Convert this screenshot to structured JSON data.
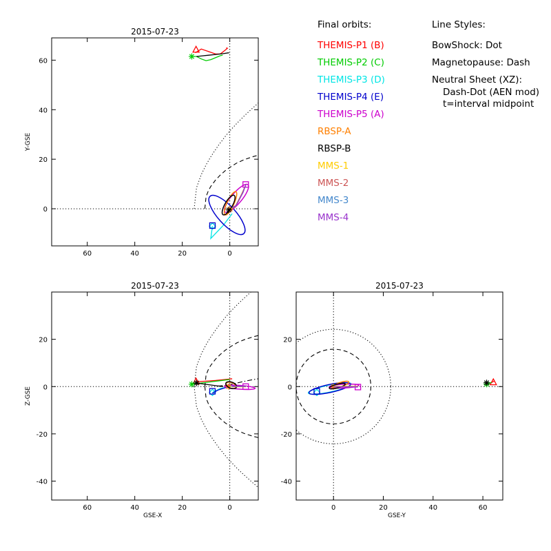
{
  "chart_data": [
    {
      "type": "line",
      "panel": "top-left",
      "title": "2015-07-23",
      "xlabel": "",
      "ylabel": "Y-GSE",
      "xlim": [
        75,
        -12
      ],
      "ylim": [
        -15,
        69
      ],
      "x_ticks": [
        60,
        40,
        20,
        0
      ],
      "y_ticks": [
        0,
        20,
        40,
        60
      ],
      "ref_lines": [
        {
          "axis": "x",
          "value": 0,
          "style": "dotted"
        },
        {
          "axis": "y",
          "value": 0,
          "style": "dotted"
        }
      ],
      "boundaries": [
        {
          "name": "BowShock",
          "style": "dotted",
          "color": "#000000",
          "x": [
            15,
            14,
            12,
            10,
            8,
            5,
            2,
            0,
            -3,
            -6,
            -9,
            -12
          ],
          "y": [
            0,
            8.5,
            13.8,
            17.7,
            21,
            25.3,
            29.1,
            31.4,
            34.5,
            37.4,
            40.1,
            42.7
          ]
        },
        {
          "name": "Magnetopause",
          "style": "dashed",
          "color": "#000000",
          "x": [
            10.5,
            10,
            9,
            8,
            6,
            4,
            2,
            0,
            -3,
            -6,
            -10,
            -12
          ],
          "y": [
            0,
            4.8,
            7.3,
            9,
            11.6,
            13.6,
            15.3,
            16.7,
            18.5,
            19.8,
            21.1,
            21.6
          ]
        }
      ],
      "series": [
        {
          "name": "THEMIS-P1 (B)",
          "color": "#ff0000",
          "x": [
            14.5,
            12,
            9,
            6,
            4,
            2,
            1,
            1.5
          ],
          "y": [
            63,
            64.5,
            63.5,
            62.5,
            62.5,
            64,
            64.8,
            65
          ],
          "marker": "triangle",
          "marker_at": [
            14.2,
            64.2
          ]
        },
        {
          "name": "THEMIS-P2 (C)",
          "color": "#00cc00",
          "x": [
            16,
            14,
            12,
            10,
            8,
            6,
            4,
            3
          ],
          "y": [
            61.5,
            61.5,
            60.5,
            59.8,
            60.2,
            61,
            61.8,
            62
          ],
          "marker": "asterisk",
          "marker_at": [
            16,
            61.5
          ]
        },
        {
          "name": "THEMIS-P3 (D)",
          "color": "#00e5e5",
          "x": [
            7.3,
            8,
            3,
            -1
          ],
          "y": [
            -7,
            -12,
            -7,
            -2
          ],
          "marker": "diamond",
          "marker_at": [
            7.3,
            -7
          ]
        },
        {
          "name": "THEMIS-P4 (E)",
          "color": "#0000cc",
          "ellipse": {
            "cx": 1.2,
            "cy": -2.5,
            "a": 10.6,
            "b": 3.6,
            "angle": 48
          },
          "marker": "square",
          "marker_at": [
            7.3,
            -6.8
          ]
        },
        {
          "name": "THEMIS-P5 (A)",
          "color": "#cc00cc",
          "ellipse": {
            "cx": -2.8,
            "cy": 4.2,
            "a": 7.5,
            "b": 2.1,
            "angle": -50
          },
          "marker": "square",
          "marker_at": [
            -6.7,
            9.8
          ]
        },
        {
          "name": "RBSP-A",
          "color": "#ff7f00",
          "ellipse": {
            "cx": -0.3,
            "cy": 2.2,
            "a": 5.4,
            "b": 1.4,
            "angle": -65
          },
          "marker": "asterisk",
          "marker_at": [
            -0.1,
            -0.2
          ]
        },
        {
          "name": "RBSP-B",
          "color": "#000000",
          "ellipse": {
            "cx": 0.5,
            "cy": 1.5,
            "a": 4.7,
            "b": 1.5,
            "angle": -60
          },
          "marker": "asterisk",
          "marker_at": [
            0.4,
            -0.5
          ],
          "extra_x": [
            14,
            12,
            9,
            6,
            3,
            0.3
          ],
          "extra_y": [
            61.5,
            61.7,
            62,
            62.3,
            62.6,
            63
          ]
        },
        {
          "name": "MMS-1",
          "color": "#ffcc00",
          "x": [
            -0.6,
            -2.2,
            -5,
            -6.8
          ],
          "y": [
            0,
            0.8,
            6,
            9.8
          ]
        },
        {
          "name": "MMS-2",
          "color": "#cc5555",
          "x": [
            -0.8,
            -2.4,
            -5.2,
            -6.8
          ],
          "y": [
            0.2,
            1,
            6.2,
            9.8
          ]
        },
        {
          "name": "MMS-3",
          "color": "#4488cc",
          "x": [
            -1,
            -2.6,
            -5.4,
            -6.8
          ],
          "y": [
            0.4,
            1.2,
            6.4,
            9.8
          ]
        },
        {
          "name": "MMS-4",
          "color": "#9933cc",
          "x": [
            -1.2,
            -2.8,
            -5.6,
            -6.8
          ],
          "y": [
            0.6,
            1.4,
            6.6,
            9.8
          ]
        }
      ]
    },
    {
      "type": "line",
      "panel": "bottom-left",
      "title": "2015-07-23",
      "xlabel": "GSE-X",
      "ylabel": "Z-GSE",
      "xlim": [
        75,
        -12
      ],
      "ylim": [
        -48,
        40
      ],
      "x_ticks": [
        60,
        40,
        20,
        0
      ],
      "y_ticks": [
        20,
        0,
        -20,
        -40
      ],
      "ref_lines": [
        {
          "axis": "x",
          "value": 0,
          "style": "dotted"
        },
        {
          "axis": "y",
          "value": 0,
          "style": "dotted"
        }
      ],
      "boundaries": [
        {
          "name": "BowShock",
          "style": "dotted",
          "color": "#000000",
          "x": [
            15,
            14,
            12,
            10,
            8,
            5,
            2,
            0,
            -3,
            -6,
            -9,
            -12
          ],
          "y": [
            0,
            8.5,
            13.8,
            17.7,
            21,
            25.3,
            29.1,
            31.4,
            34.5,
            37.4,
            40.1,
            42.7
          ]
        },
        {
          "name": "BowShock",
          "style": "dotted",
          "color": "#000000",
          "x": [
            15,
            14,
            12,
            10,
            8,
            5,
            2,
            0,
            -3,
            -6,
            -9,
            -12
          ],
          "y": [
            0,
            -8.5,
            -13.8,
            -17.7,
            -21,
            -25.3,
            -29.1,
            -31.4,
            -34.5,
            -37.4,
            -40.1,
            -42.7
          ]
        },
        {
          "name": "Magnetopause",
          "style": "dashed",
          "color": "#000000",
          "x": [
            10.5,
            10,
            9,
            8,
            6,
            4,
            2,
            0,
            -3,
            -6,
            -10,
            -12
          ],
          "y": [
            0,
            4.8,
            7.3,
            9,
            11.6,
            13.6,
            15.3,
            16.7,
            18.5,
            19.8,
            21.1,
            21.6
          ]
        },
        {
          "name": "Magnetopause",
          "style": "dashed",
          "color": "#000000",
          "x": [
            10.5,
            10,
            9,
            8,
            6,
            4,
            2,
            0,
            -3,
            -6,
            -10,
            -12
          ],
          "y": [
            0,
            -4.8,
            -7.3,
            -9,
            -11.6,
            -13.6,
            -15.3,
            -16.7,
            -18.5,
            -19.8,
            -21.1,
            -21.6
          ]
        },
        {
          "name": "Neutral Sheet (XZ)",
          "style": "dashdot",
          "color": "#000000",
          "x": [
            5,
            2,
            0,
            -3,
            -6,
            -9,
            -12
          ],
          "y": [
            0.2,
            0.5,
            0.8,
            1.5,
            2.2,
            2.8,
            3.3
          ]
        }
      ],
      "series": [
        {
          "name": "THEMIS-P1 (B)",
          "color": "#ff0000",
          "x": [
            14.5,
            10,
            6,
            2,
            -1
          ],
          "y": [
            2,
            2.3,
            2.6,
            3,
            3.3
          ],
          "marker": "triangle",
          "marker_at": [
            14.2,
            2.1
          ]
        },
        {
          "name": "THEMIS-P2 (C)",
          "color": "#00cc00",
          "x": [
            16,
            12,
            8,
            4,
            0
          ],
          "y": [
            1,
            1.5,
            2,
            2.5,
            3
          ],
          "marker": "asterisk",
          "marker_at": [
            16,
            1
          ]
        },
        {
          "name": "THEMIS-P3 (D)",
          "color": "#00e5e5",
          "x": [
            7.3,
            4,
            1,
            0,
            -1
          ],
          "y": [
            -2.5,
            -0.8,
            -0.2,
            0,
            0.2
          ],
          "marker": "diamond",
          "marker_at": [
            7.3,
            -2.5
          ]
        },
        {
          "name": "THEMIS-P4 (E)",
          "color": "#0000cc",
          "x": [
            7.3,
            5,
            2,
            0
          ],
          "y": [
            -2.8,
            -1.5,
            -0.5,
            0
          ],
          "marker": "square",
          "marker_at": [
            7.3,
            -2
          ]
        },
        {
          "name": "THEMIS-P5 (A)",
          "color": "#cc00cc",
          "ellipse": {
            "cx": -4.2,
            "cy": -0.3,
            "a": 6.5,
            "b": 0.8,
            "angle": 4
          },
          "marker": "square",
          "marker_at": [
            -6.7,
            0
          ]
        },
        {
          "name": "RBSP-A",
          "color": "#ff7f00",
          "ellipse": {
            "cx": -0.5,
            "cy": 0.5,
            "a": 2.2,
            "b": 1.2,
            "angle": 20
          },
          "marker": "asterisk",
          "marker_at": [
            0.5,
            0
          ]
        },
        {
          "name": "RBSP-B",
          "color": "#000000",
          "ellipse": {
            "cx": -0.6,
            "cy": 0.6,
            "a": 2.4,
            "b": 1.3,
            "angle": 20
          },
          "marker": "asterisk",
          "marker_at": [
            14,
            1.5
          ],
          "extra_x": [
            14,
            12,
            9,
            6,
            3
          ],
          "extra_y": [
            1.5,
            1.2,
            0.8,
            0.4,
            0
          ]
        },
        {
          "name": "MMS-1",
          "color": "#ffcc00",
          "x": [
            -1,
            -6.8
          ],
          "y": [
            -0.1,
            -0.1
          ]
        },
        {
          "name": "MMS-2",
          "color": "#cc5555",
          "x": [
            -1,
            -6.8
          ],
          "y": [
            0,
            0
          ]
        },
        {
          "name": "MMS-3",
          "color": "#4488cc",
          "x": [
            -1,
            -6.8
          ],
          "y": [
            0.1,
            0.1
          ]
        },
        {
          "name": "MMS-4",
          "color": "#9933cc",
          "x": [
            -1,
            -6.8
          ],
          "y": [
            0.2,
            0.2
          ]
        }
      ]
    },
    {
      "type": "line",
      "panel": "bottom-right",
      "title": "2015-07-23",
      "xlabel": "GSE-Y",
      "ylabel": "",
      "xlim": [
        -15,
        68
      ],
      "ylim": [
        -48,
        40
      ],
      "x_ticks": [
        0,
        20,
        40,
        60
      ],
      "y_ticks": [
        20,
        0,
        -20,
        -40
      ],
      "ref_lines": [
        {
          "axis": "x",
          "value": 0,
          "style": "dotted"
        },
        {
          "axis": "y",
          "value": 0,
          "style": "dotted"
        }
      ],
      "boundaries": [
        {
          "name": "BowShock",
          "style": "dotted",
          "color": "#000000",
          "circle": {
            "cx": 0,
            "cy": 0,
            "r": 23
          }
        },
        {
          "name": "Magnetopause",
          "style": "dashed",
          "color": "#000000",
          "circle": {
            "cx": 0,
            "cy": 0,
            "r": 15
          }
        }
      ],
      "series": [
        {
          "name": "THEMIS-P1 (B)",
          "color": "#ff0000",
          "x": [
            62,
            63,
            64,
            64.5
          ],
          "y": [
            1.5,
            1.5,
            2,
            2.3
          ],
          "marker": "triangle",
          "marker_at": [
            64.2,
            1.8
          ]
        },
        {
          "name": "THEMIS-P2 (C)",
          "color": "#00cc00",
          "x": [
            61.5,
            62.5,
            63.5
          ],
          "y": [
            1,
            1.4,
            1.8
          ],
          "marker": "asterisk",
          "marker_at": [
            61.5,
            1
          ]
        },
        {
          "name": "THEMIS-P3 (D)",
          "color": "#00e5e5",
          "ellipse": {
            "cx": -1.5,
            "cy": -0.8,
            "a": 8.8,
            "b": 1.5,
            "angle": -12
          },
          "marker": "diamond",
          "marker_at": [
            -6.7,
            -2.5
          ]
        },
        {
          "name": "THEMIS-P4 (E)",
          "color": "#0000cc",
          "ellipse": {
            "cx": -1.5,
            "cy": -0.8,
            "a": 8.5,
            "b": 1.7,
            "angle": -12
          },
          "marker": "square",
          "marker_at": [
            -6.7,
            -2
          ]
        },
        {
          "name": "THEMIS-P5 (A)",
          "color": "#cc00cc",
          "ellipse": {
            "cx": 4.2,
            "cy": 0.2,
            "a": 6,
            "b": 0.8,
            "angle": -3
          },
          "marker": "square",
          "marker_at": [
            9.8,
            -0.2
          ]
        },
        {
          "name": "RBSP-A",
          "color": "#ff7f00",
          "ellipse": {
            "cx": 3,
            "cy": 0.9,
            "a": 3.3,
            "b": 0.9,
            "angle": -18
          },
          "marker": "asterisk",
          "marker_at": [
            0,
            0
          ]
        },
        {
          "name": "RBSP-B",
          "color": "#000000",
          "ellipse": {
            "cx": 1.5,
            "cy": 0.2,
            "a": 3.3,
            "b": 0.8,
            "angle": -15
          },
          "marker": "asterisk",
          "marker_at": [
            61.5,
            1.6
          ]
        },
        {
          "name": "MMS-1",
          "color": "#ffcc00",
          "x": [
            0,
            9.8
          ],
          "y": [
            0.1,
            0.1
          ]
        },
        {
          "name": "MMS-2",
          "color": "#cc5555",
          "x": [
            0,
            9.8
          ],
          "y": [
            0,
            0
          ]
        },
        {
          "name": "MMS-3",
          "color": "#4488cc",
          "x": [
            0,
            9.8
          ],
          "y": [
            -0.1,
            -0.1
          ]
        },
        {
          "name": "MMS-4",
          "color": "#9933cc",
          "x": [
            0,
            9.8
          ],
          "y": [
            -0.2,
            -0.2
          ]
        }
      ]
    }
  ],
  "legend": {
    "title": "Final orbits:",
    "items": [
      {
        "label": "THEMIS-P1 (B)",
        "color": "#ff0000"
      },
      {
        "label": "THEMIS-P2 (C)",
        "color": "#00cc00"
      },
      {
        "label": "THEMIS-P3 (D)",
        "color": "#00e5e5"
      },
      {
        "label": "THEMIS-P4 (E)",
        "color": "#0000cc"
      },
      {
        "label": "THEMIS-P5 (A)",
        "color": "#cc00cc"
      },
      {
        "label": "RBSP-A",
        "color": "#ff7f00"
      },
      {
        "label": "RBSP-B",
        "color": "#000000"
      },
      {
        "label": "MMS-1",
        "color": "#ffcc00"
      },
      {
        "label": "MMS-2",
        "color": "#cc5555"
      },
      {
        "label": "MMS-3",
        "color": "#4488cc"
      },
      {
        "label": "MMS-4",
        "color": "#9933cc"
      }
    ]
  },
  "line_styles": {
    "title": "Line Styles:",
    "items": [
      "BowShock: Dot",
      "Magnetopause: Dash",
      "Neutral Sheet (XZ):",
      "Dash-Dot (AEN mod)",
      "t=interval midpoint"
    ]
  }
}
